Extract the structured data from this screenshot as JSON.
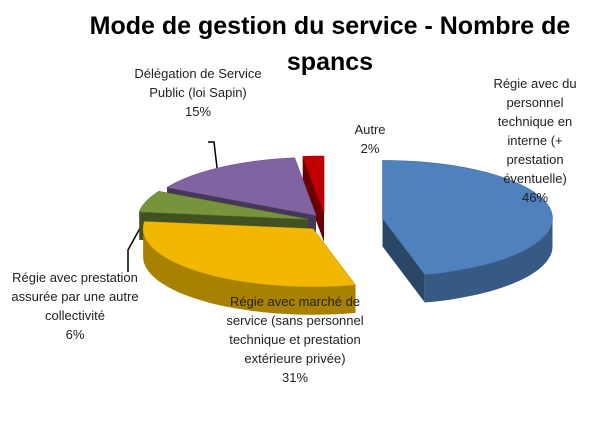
{
  "chart_data": {
    "type": "pie3d",
    "title": "Mode de gestion du service - Nombre de spancs",
    "categories": [
      "Régie avec du personnel technique en interne (+ prestation éventuelle)",
      "Régie avec marché de service (sans personnel technique et prestation extérieure privée)",
      "Régie avec prestation assurée par une autre collectivité",
      "Délégation de Service Public (loi Sapin)",
      "Autre"
    ],
    "values": [
      46,
      31,
      6,
      15,
      2
    ],
    "value_labels": [
      "46%",
      "31%",
      "6%",
      "15%",
      "2%"
    ],
    "colors": [
      "#4f81bd",
      "#f2b800",
      "#77933c",
      "#8064a2",
      "#c00000"
    ]
  }
}
